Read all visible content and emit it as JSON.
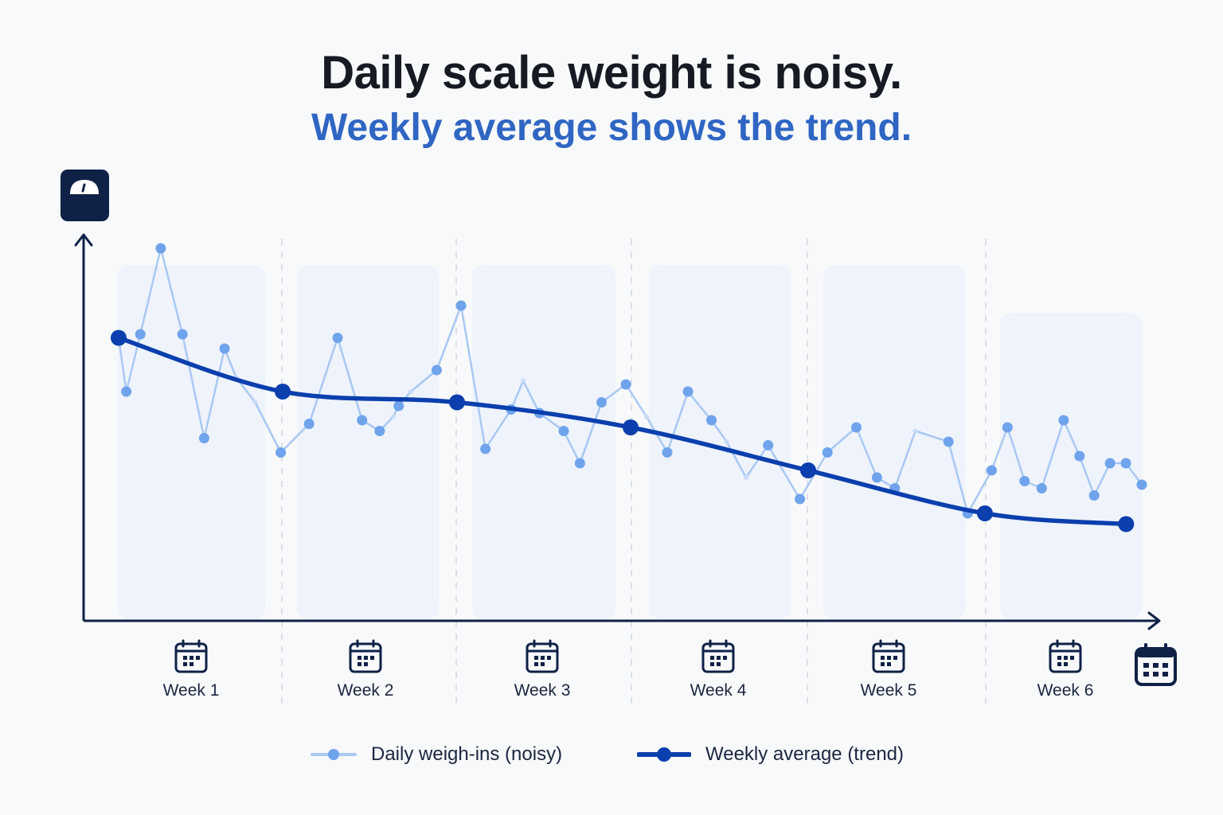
{
  "title": "Daily scale weight is noisy.",
  "subtitle": "Weekly average shows the trend.",
  "icons": {
    "y_axis": "scale-icon",
    "x_axis": "calendar-icon",
    "week": "calendar-icon"
  },
  "colors": {
    "daily": "#6fa3ec",
    "daily_line": "#a9c8f4",
    "trend": "#0b3fae",
    "axis": "#0f2147",
    "week_band": "#eef3fc",
    "text": "#1b2740"
  },
  "legend": {
    "daily": "Daily weigh-ins (noisy)",
    "trend": "Weekly average (trend)"
  },
  "chart_data": {
    "type": "line",
    "title": "Daily scale weight is noisy.",
    "subtitle": "Weekly average shows the trend.",
    "xlabel": "",
    "ylabel": "",
    "grid": false,
    "legend_placement": "bottom",
    "categories": [
      "Week 1",
      "Week 2",
      "Week 3",
      "Week 4",
      "Week 5",
      "Week 6"
    ],
    "ylim": [
      0,
      100
    ],
    "series": [
      {
        "name": "Daily weigh-ins (noisy)",
        "x": [
          0,
          0.06,
          0.17,
          0.33,
          0.5,
          0.67,
          0.83,
          0.92,
          1.07,
          1.27,
          1.48,
          1.69,
          1.87,
          2.0,
          2.1,
          2.14,
          2.23,
          2.42,
          2.6,
          2.78,
          2.97,
          3.06,
          3.18,
          3.36,
          3.48,
          3.64,
          3.82,
          3.97,
          4.12,
          4.27,
          4.44,
          4.55,
          4.69,
          4.85,
          5.08,
          5.28,
          5.49,
          5.64,
          5.77,
          5.92,
          6.16,
          6.3,
          6.48,
          6.61,
          6.75,
          6.89,
          7.07,
          7.2,
          7.32,
          7.45,
          7.58,
          7.71
        ],
        "y": [
          79,
          64,
          80,
          104,
          80,
          51,
          76,
          68,
          61,
          47,
          55,
          79,
          56,
          53,
          57,
          60,
          64,
          70,
          88,
          48,
          59,
          67,
          58,
          53,
          44,
          61,
          66,
          57,
          47,
          64,
          56,
          50,
          40,
          49,
          34,
          47,
          54,
          40,
          37,
          53,
          50,
          30,
          42,
          54,
          39,
          37,
          56,
          46,
          35,
          44,
          44,
          38
        ],
        "points_visible": [
          1,
          1,
          1,
          1,
          1,
          1,
          1,
          0,
          0,
          1,
          1,
          1,
          1,
          1,
          0,
          1,
          0,
          1,
          1,
          1,
          1,
          0,
          1,
          1,
          1,
          1,
          1,
          0,
          1,
          1,
          1,
          0,
          0,
          1,
          1,
          1,
          1,
          1,
          1,
          0,
          1,
          1,
          1,
          1,
          1,
          1,
          1,
          1,
          1,
          1,
          1,
          1
        ]
      },
      {
        "name": "Weekly average (trend)",
        "x": [
          0,
          1,
          2,
          3,
          4,
          5,
          5.9
        ],
        "y": [
          79,
          64,
          61,
          54,
          42,
          30,
          27
        ]
      }
    ]
  }
}
